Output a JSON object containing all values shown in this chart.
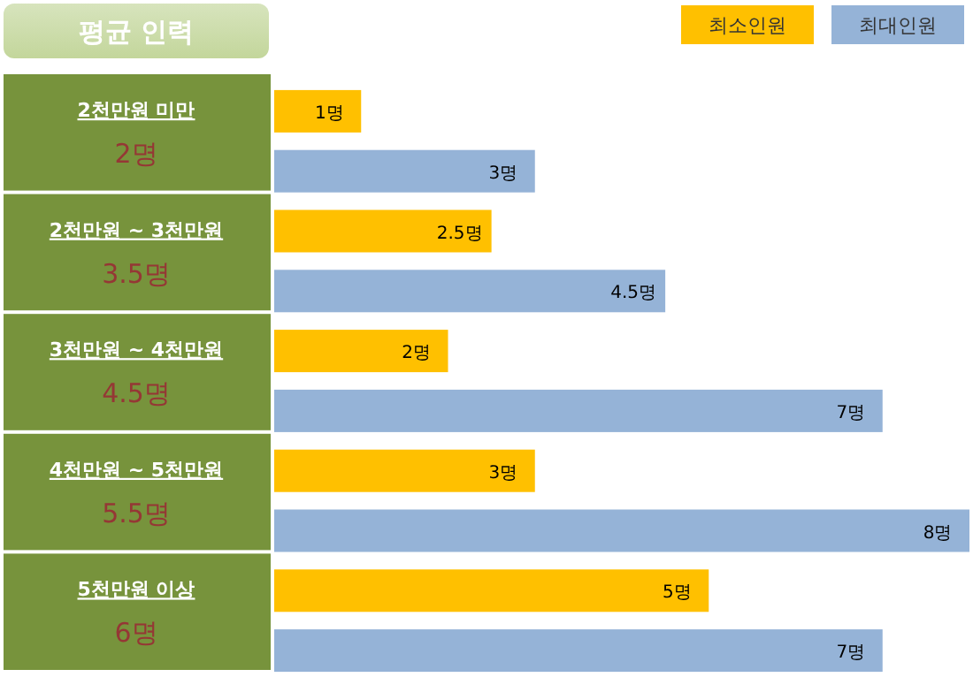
{
  "chart_data": {
    "type": "bar",
    "orientation": "horizontal",
    "title": "평균 인력",
    "categories": [
      "2천만원 미만",
      "2천만원 ~ 3천만원",
      "3천만원 ~ 4천만원",
      "4천만원 ~ 5천만원",
      "5천만원 이상"
    ],
    "annotations": [
      "2명",
      "3.5명",
      "4.5명",
      "5.5명",
      "6명"
    ],
    "series": [
      {
        "name": "최소인원",
        "color": "#ffc000",
        "values": [
          1,
          2.5,
          2,
          3,
          5
        ],
        "value_labels": [
          "1명",
          "2.5명",
          "2명",
          "3명",
          "5명"
        ]
      },
      {
        "name": "최대인원",
        "color": "#95b3d7",
        "values": [
          3,
          4.5,
          7,
          8,
          7
        ],
        "value_labels": [
          "3명",
          "4.5명",
          "7명",
          "8명",
          "7명"
        ]
      }
    ],
    "legend": "top right"
  }
}
